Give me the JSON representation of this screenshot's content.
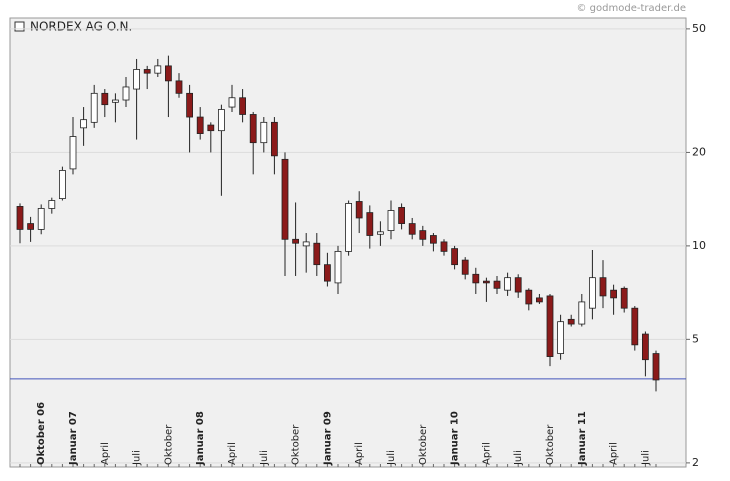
{
  "chart_data": {
    "type": "candlestick",
    "title": "NORDEX AG O.N.",
    "watermark": "© godmode-trader.de",
    "categories": [
      null,
      null,
      "Oktober 06",
      null,
      null,
      "Januar 07",
      null,
      null,
      "April",
      null,
      null,
      "Juli",
      null,
      null,
      "Oktober",
      null,
      null,
      "Januar 08",
      null,
      null,
      "April",
      null,
      null,
      "Juli",
      null,
      null,
      "Oktober",
      null,
      null,
      "Januar 09",
      null,
      null,
      "April",
      null,
      null,
      "Juli",
      null,
      null,
      "Oktober",
      null,
      null,
      "Januar 10",
      null,
      null,
      "April",
      null,
      null,
      "Juli",
      null,
      null,
      "Oktober",
      null,
      null,
      "Januar 11",
      null,
      null,
      "April",
      null,
      null,
      "Juli",
      null
    ],
    "open": [
      13.4,
      11.8,
      11.3,
      13.2,
      14.2,
      17.7,
      24,
      25,
      31,
      29,
      29.5,
      32,
      37,
      36,
      38,
      34,
      31,
      26,
      24.5,
      23.5,
      28,
      30,
      26.5,
      21.5,
      25,
      19,
      10.5,
      10,
      10.2,
      8.7,
      7.6,
      9.6,
      13.9,
      12.8,
      10.9,
      11.2,
      13.3,
      11.8,
      11.2,
      10.8,
      10.3,
      9.8,
      9,
      8.1,
      7.7,
      7.7,
      7.2,
      7.9,
      7.2,
      6.8,
      6.9,
      4.5,
      5.8,
      5.6,
      6.3,
      7.9,
      7.2,
      7.3,
      6.3,
      5.2,
      4.5
    ],
    "high": [
      13.7,
      12.4,
      13.6,
      14.3,
      18,
      26,
      28,
      33,
      32,
      31,
      35,
      40,
      38,
      40,
      41,
      36,
      33,
      28,
      25,
      28.5,
      33,
      32,
      27,
      26,
      26,
      20,
      13.8,
      11,
      11,
      9.5,
      10,
      14,
      15,
      13.5,
      12,
      14,
      13.7,
      12.3,
      11.6,
      11,
      10.5,
      10,
      9.2,
      8.5,
      7.9,
      8,
      8.2,
      8.1,
      7.3,
      7,
      7,
      6,
      6,
      7,
      9.7,
      9,
      7.5,
      7.4,
      6.4,
      5.3,
      4.6
    ],
    "low": [
      10.2,
      10.3,
      10.9,
      12.7,
      14,
      17,
      21,
      24,
      26,
      25,
      28,
      22,
      32,
      35,
      26,
      30,
      20,
      22,
      20,
      14.5,
      27,
      25,
      17,
      20,
      17,
      8,
      8,
      8.2,
      8,
      7.4,
      7,
      9.3,
      11,
      9.8,
      10,
      10.5,
      11.3,
      10.5,
      10,
      9.6,
      9.3,
      8.4,
      7.8,
      7,
      6.6,
      7,
      6.9,
      6.8,
      6.2,
      6.5,
      4.1,
      4.3,
      5.5,
      5.5,
      5.8,
      6.3,
      6,
      6.1,
      4.6,
      3.8,
      3.4
    ],
    "close": [
      11.3,
      11.3,
      13.2,
      14,
      17.5,
      22.5,
      25.5,
      31,
      28.5,
      29.5,
      32.5,
      37,
      36,
      38,
      34,
      31,
      26,
      23,
      23.5,
      27.5,
      30,
      26.5,
      21.5,
      25,
      19.5,
      10.5,
      10.2,
      10.3,
      8.7,
      7.7,
      9.6,
      13.7,
      12.3,
      10.8,
      11.1,
      13,
      11.8,
      10.9,
      10.5,
      10.2,
      9.6,
      8.7,
      8.1,
      7.6,
      7.6,
      7.3,
      7.9,
      7.1,
      6.5,
      6.6,
      4.4,
      5.7,
      5.6,
      6.6,
      7.9,
      6.9,
      6.8,
      6.3,
      4.8,
      4.3,
      3.7
    ],
    "up_color": "#ffffff",
    "down_color": "#8b1a1a",
    "log_y": true,
    "ylim": [
      1.94,
      54.2
    ],
    "yticks": [
      2,
      5,
      10,
      20,
      50
    ],
    "grid": true,
    "hline": {
      "value": 3.73,
      "color": "#4455bb"
    }
  }
}
